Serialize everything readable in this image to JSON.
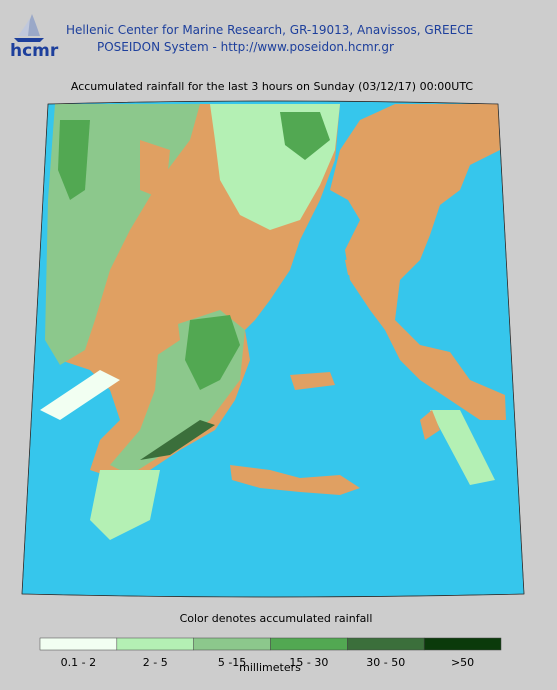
{
  "header": {
    "logo": "hcmr",
    "organization": "Hellenic Center for Marine Research, GR-19013, Anavissos, GREECE",
    "system": "POSEIDON System - http://www.poseidon.hcmr.gr"
  },
  "map": {
    "title": "Accumulated rainfall for the last 3 hours on Sunday (03/12/17) 00:00UTC"
  },
  "legend": {
    "caption": "Color denotes accumulated rainfall",
    "unit": "millimeters",
    "items": [
      {
        "label": "0.1 - 2",
        "color": "#f2fff2"
      },
      {
        "label": "2 - 5",
        "color": "#b4f0b4"
      },
      {
        "label": "5 -15",
        "color": "#8cc88c"
      },
      {
        "label": "15 - 30",
        "color": "#52a852"
      },
      {
        "label": "30 - 50",
        "color": "#3b6f3b"
      },
      {
        "label": ">50",
        "color": "#0b3a0b"
      }
    ]
  }
}
